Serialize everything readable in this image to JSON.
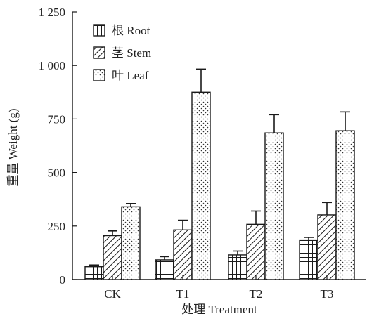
{
  "chart_data": {
    "type": "bar",
    "categories": [
      "CK",
      "T1",
      "T2",
      "T3"
    ],
    "series": [
      {
        "name": "根 Root",
        "pattern": "grid",
        "values": [
          60,
          92,
          115,
          185
        ],
        "errors": [
          8,
          15,
          18,
          12
        ]
      },
      {
        "name": "茎 Stem",
        "pattern": "hatch",
        "values": [
          205,
          232,
          258,
          302
        ],
        "errors": [
          22,
          45,
          62,
          58
        ]
      },
      {
        "name": "叶 Leaf",
        "pattern": "dots",
        "values": [
          340,
          875,
          685,
          695
        ],
        "errors": [
          15,
          108,
          85,
          88
        ]
      }
    ],
    "ylabel": "重量 Weight (g)",
    "xlabel": "处理 Treatment",
    "ylim": [
      0,
      1250
    ],
    "yticks": [
      0,
      250,
      500,
      750,
      1000,
      1250
    ],
    "ytick_labels": [
      "0",
      "250",
      "500",
      "750",
      "1 000",
      "1 250"
    ],
    "legend_position": "top-left",
    "grid": false
  }
}
